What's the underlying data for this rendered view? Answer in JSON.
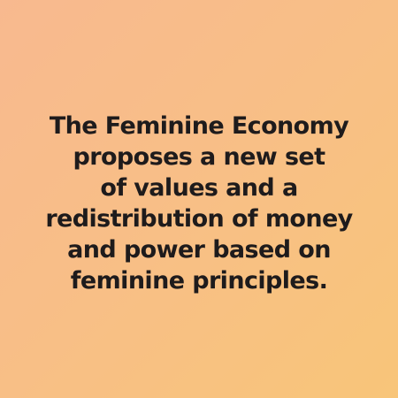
{
  "quote": {
    "lines": [
      "The Feminine Economy",
      "proposes a new set",
      "of values and a",
      "redistribution of money",
      "and power based on",
      "feminine principles."
    ]
  },
  "colors": {
    "background_start": "#f8b98f",
    "background_end": "#f8c579",
    "text": "#1e1b1c"
  }
}
